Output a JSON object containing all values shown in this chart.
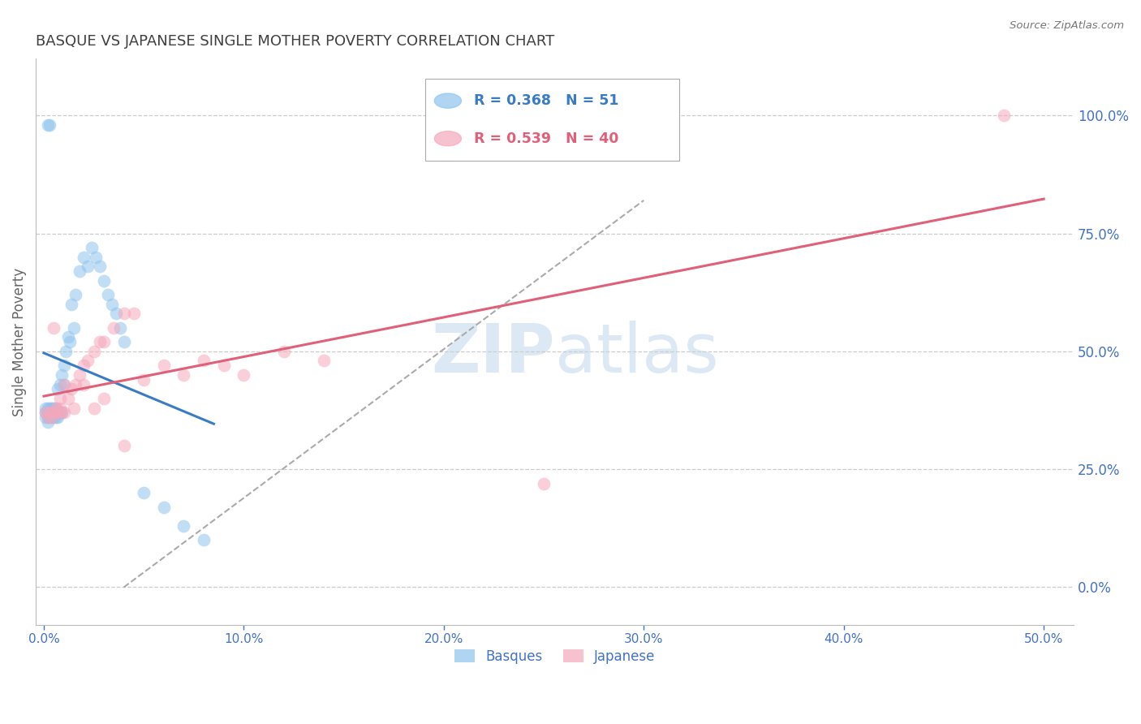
{
  "title": "BASQUE VS JAPANESE SINGLE MOTHER POVERTY CORRELATION CHART",
  "source": "Source: ZipAtlas.com",
  "ylabel": "Single Mother Poverty",
  "basques_color": "#8EC4EE",
  "japanese_color": "#F5A8BC",
  "basques_line_color": "#3A7CC4",
  "japanese_line_color": "#E0607A",
  "axis_label_color": "#4472C4",
  "title_color": "#404040",
  "grid_color": "#CCCCCC",
  "watermark_color": "#DCE9F5",
  "R_basques": 0.368,
  "N_basques": 51,
  "R_japanese": 0.539,
  "N_japanese": 40,
  "ytick_labels": [
    "0.0%",
    "25.0%",
    "50.0%",
    "75.0%",
    "100.0%"
  ],
  "ytick_values": [
    0.0,
    0.25,
    0.5,
    0.75,
    1.0
  ],
  "xtick_labels": [
    "0.0%",
    "10.0%",
    "20.0%",
    "30.0%",
    "40.0%",
    "50.0%"
  ],
  "xtick_values": [
    0.0,
    0.1,
    0.2,
    0.3,
    0.4,
    0.5
  ],
  "basques_x": [
    0.001,
    0.001,
    0.001,
    0.002,
    0.002,
    0.002,
    0.002,
    0.003,
    0.003,
    0.003,
    0.004,
    0.004,
    0.004,
    0.005,
    0.005,
    0.005,
    0.006,
    0.006,
    0.006,
    0.007,
    0.007,
    0.008,
    0.008,
    0.009,
    0.009,
    0.01,
    0.01,
    0.011,
    0.012,
    0.013,
    0.014,
    0.015,
    0.016,
    0.018,
    0.02,
    0.022,
    0.024,
    0.026,
    0.028,
    0.03,
    0.032,
    0.034,
    0.036,
    0.038,
    0.04,
    0.002,
    0.003,
    0.05,
    0.06,
    0.07,
    0.08
  ],
  "basques_y": [
    0.37,
    0.38,
    0.36,
    0.35,
    0.38,
    0.37,
    0.36,
    0.36,
    0.37,
    0.38,
    0.36,
    0.37,
    0.38,
    0.36,
    0.37,
    0.38,
    0.36,
    0.37,
    0.38,
    0.36,
    0.42,
    0.37,
    0.43,
    0.37,
    0.45,
    0.47,
    0.43,
    0.5,
    0.53,
    0.52,
    0.6,
    0.55,
    0.62,
    0.67,
    0.7,
    0.68,
    0.72,
    0.7,
    0.68,
    0.65,
    0.62,
    0.6,
    0.58,
    0.55,
    0.52,
    0.98,
    0.98,
    0.2,
    0.17,
    0.13,
    0.1
  ],
  "japanese_x": [
    0.001,
    0.002,
    0.003,
    0.004,
    0.005,
    0.006,
    0.007,
    0.008,
    0.009,
    0.01,
    0.012,
    0.014,
    0.016,
    0.018,
    0.02,
    0.022,
    0.025,
    0.028,
    0.03,
    0.035,
    0.04,
    0.045,
    0.05,
    0.06,
    0.07,
    0.08,
    0.09,
    0.1,
    0.12,
    0.14,
    0.005,
    0.008,
    0.01,
    0.015,
    0.02,
    0.025,
    0.03,
    0.04,
    0.25,
    0.48
  ],
  "japanese_y": [
    0.37,
    0.36,
    0.37,
    0.36,
    0.37,
    0.38,
    0.37,
    0.38,
    0.37,
    0.37,
    0.4,
    0.42,
    0.43,
    0.45,
    0.47,
    0.48,
    0.5,
    0.52,
    0.52,
    0.55,
    0.58,
    0.58,
    0.44,
    0.47,
    0.45,
    0.48,
    0.47,
    0.45,
    0.5,
    0.48,
    0.55,
    0.4,
    0.43,
    0.38,
    0.43,
    0.38,
    0.4,
    0.3,
    0.22,
    1.0
  ],
  "xlim": [
    -0.004,
    0.515
  ],
  "ylim": [
    -0.08,
    1.12
  ]
}
